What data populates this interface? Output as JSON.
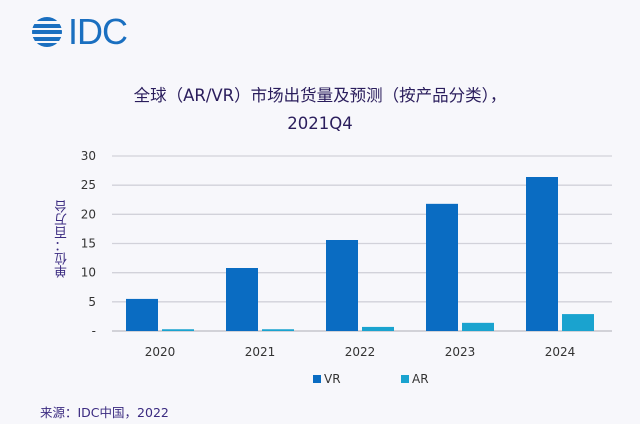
{
  "logo": {
    "text": "IDC",
    "color": "#1a6fc0"
  },
  "title_line1": "全球（AR/VR）市场出货量及预测（按产品分类），",
  "title_line2": "2021Q4",
  "source": "来源：IDC中国，2022",
  "chart_data": {
    "type": "bar",
    "categories": [
      "2020",
      "2021",
      "2022",
      "2023",
      "2024"
    ],
    "series": [
      {
        "name": "VR",
        "color": "#0a6cc2",
        "values": [
          5.5,
          10.8,
          15.6,
          21.8,
          26.4
        ]
      },
      {
        "name": "AR",
        "color": "#1aa3cf",
        "values": [
          0.3,
          0.3,
          0.7,
          1.4,
          2.9
        ]
      }
    ],
    "ylabel": "单位：百万台",
    "ylim": [
      0,
      30
    ],
    "yticks": [
      "-",
      "5",
      "10",
      "15",
      "20",
      "25",
      "30"
    ],
    "grid": true,
    "legend": "bottom"
  }
}
